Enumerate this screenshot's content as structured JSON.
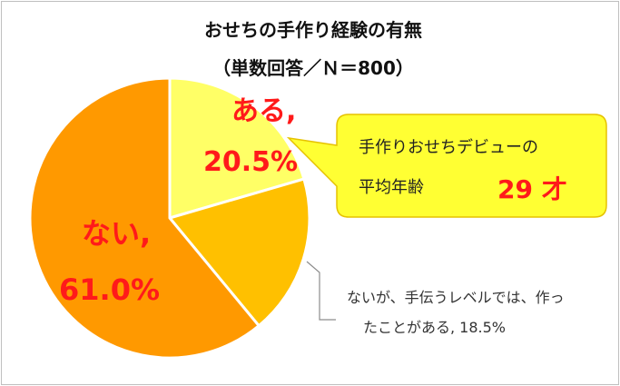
{
  "chart_data": {
    "type": "pie",
    "title": "おせちの手作り経験の有無",
    "subtitle": "（単数回答／Ｎ＝800）",
    "start_angle_deg": 0,
    "direction": "clockwise",
    "slices": [
      {
        "label": "ある",
        "value": 20.5,
        "value_text": "20.5%",
        "label_text": "ある,",
        "color": "#ffff66"
      },
      {
        "label": "ないが、手伝うレベルでは、作った",
        "value": 18.5,
        "label_line1": "ないが、手伝うレベルでは、作っ",
        "label_line2": "たことがある, 18.5%",
        "color": "#ffc000"
      },
      {
        "label": "ない",
        "value": 61.0,
        "value_text": "61.0%",
        "label_text": "ない,",
        "color": "#ff9900"
      }
    ],
    "callout": {
      "line1": "手作りおせちデビューの",
      "line2": "平均年齢",
      "value": "29 才",
      "bg_color": "#ffff33"
    }
  }
}
